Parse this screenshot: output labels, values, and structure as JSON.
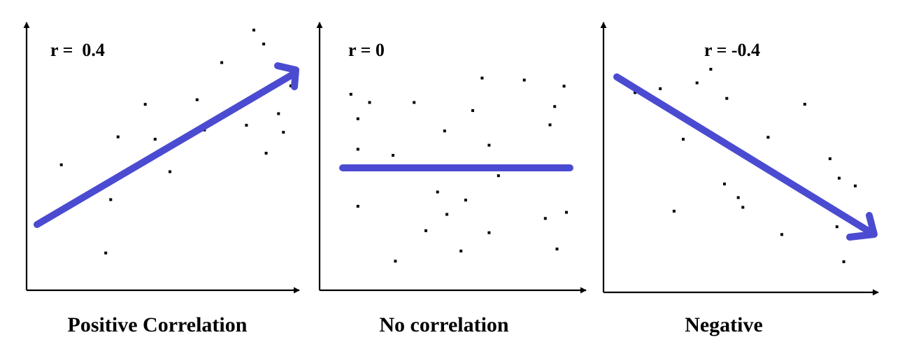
{
  "chart_data": [
    {
      "type": "scatter",
      "annotation": "r =  0.4",
      "caption": "Positive Correlation",
      "trend": "increasing",
      "points": [
        [
          0.05,
          0.42
        ],
        [
          0.23,
          0.04
        ],
        [
          0.25,
          0.27
        ],
        [
          0.28,
          0.54
        ],
        [
          0.39,
          0.68
        ],
        [
          0.43,
          0.53
        ],
        [
          0.49,
          0.39
        ],
        [
          0.6,
          0.7
        ],
        [
          0.63,
          0.57
        ],
        [
          0.7,
          0.86
        ],
        [
          0.8,
          0.59
        ],
        [
          0.83,
          1.0
        ],
        [
          0.87,
          0.94
        ],
        [
          0.88,
          0.47
        ],
        [
          0.93,
          0.64
        ],
        [
          0.95,
          0.56
        ],
        [
          0.98,
          0.76
        ]
      ],
      "colors": {
        "points": "#000000",
        "trend": "#4b4bd2",
        "axis": "#000000"
      }
    },
    {
      "type": "scatter",
      "annotation": "r = 0",
      "caption": "No correlation",
      "trend": "flat",
      "points": [
        [
          0.08,
          0.75
        ],
        [
          0.08,
          0.6
        ],
        [
          0.05,
          0.87
        ],
        [
          0.13,
          0.83
        ],
        [
          0.32,
          0.83
        ],
        [
          0.45,
          0.69
        ],
        [
          0.42,
          0.39
        ],
        [
          0.52,
          0.1
        ],
        [
          0.54,
          0.35
        ],
        [
          0.61,
          0.95
        ],
        [
          0.64,
          0.62
        ],
        [
          0.64,
          0.19
        ],
        [
          0.68,
          0.47
        ],
        [
          0.79,
          0.94
        ],
        [
          0.92,
          0.81
        ],
        [
          0.93,
          0.11
        ],
        [
          0.88,
          0.26
        ],
        [
          0.96,
          0.91
        ],
        [
          0.97,
          0.29
        ],
        [
          0.57,
          0.79
        ],
        [
          0.23,
          0.57
        ],
        [
          0.08,
          0.32
        ],
        [
          0.46,
          0.28
        ],
        [
          0.24,
          0.05
        ],
        [
          0.37,
          0.2
        ],
        [
          0.9,
          0.72
        ]
      ],
      "colors": {
        "points": "#000000",
        "trend": "#4b4bd2",
        "axis": "#000000"
      }
    },
    {
      "type": "scatter",
      "annotation": "r = -0.4",
      "caption": "Negative",
      "trend": "decreasing",
      "points": [
        [
          0.04,
          0.88
        ],
        [
          0.15,
          0.9
        ],
        [
          0.25,
          0.64
        ],
        [
          0.31,
          0.93
        ],
        [
          0.37,
          1.0
        ],
        [
          0.43,
          0.41
        ],
        [
          0.44,
          0.85
        ],
        [
          0.49,
          0.34
        ],
        [
          0.62,
          0.65
        ],
        [
          0.68,
          0.15
        ],
        [
          0.89,
          0.54
        ],
        [
          0.92,
          0.19
        ],
        [
          0.93,
          0.44
        ],
        [
          0.95,
          0.01
        ],
        [
          1.0,
          0.4
        ],
        [
          0.21,
          0.27
        ],
        [
          0.51,
          0.29
        ],
        [
          0.78,
          0.82
        ]
      ],
      "colors": {
        "points": "#000000",
        "trend": "#4b4bd2",
        "axis": "#000000"
      }
    }
  ]
}
